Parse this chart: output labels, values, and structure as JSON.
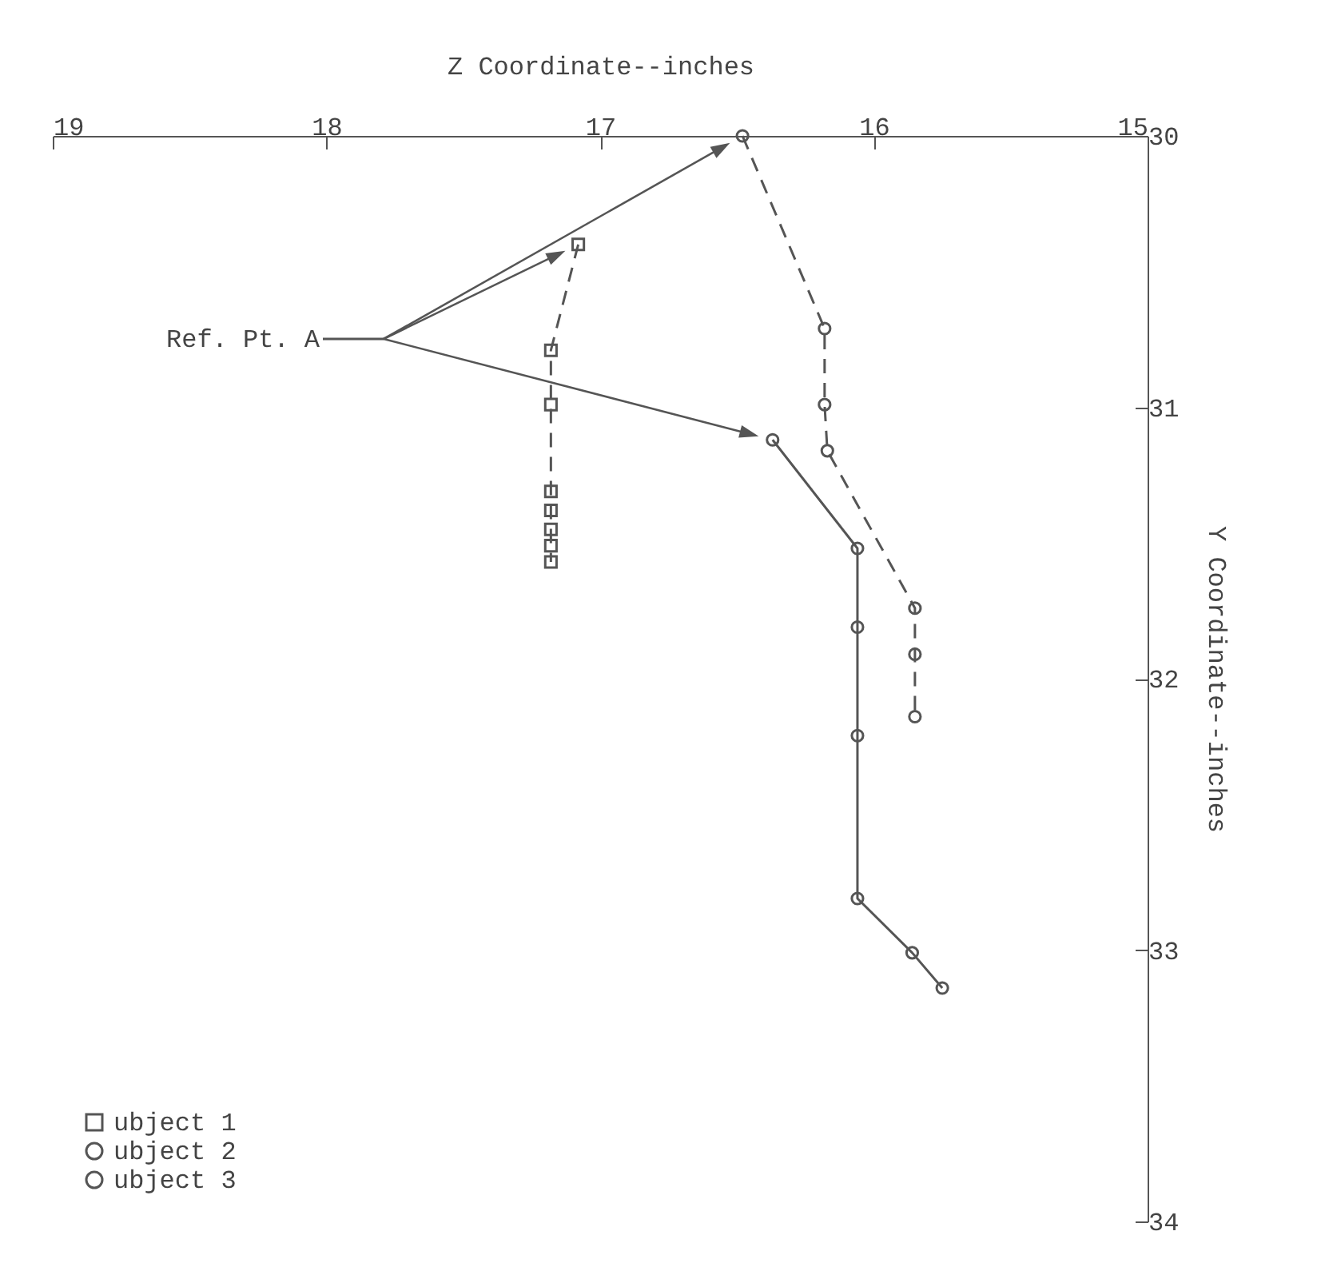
{
  "chart_data": {
    "type": "line",
    "xlabel": "Z Coordinate--inches",
    "ylabel": "Y Coordinate--inches",
    "xlim": [
      19,
      15
    ],
    "xticks": [
      19,
      18,
      17,
      16,
      15
    ],
    "ylim": [
      34,
      30
    ],
    "yticks": [
      30,
      31,
      32,
      33,
      34
    ],
    "grid": false,
    "legend": "bottom left",
    "annotations": [
      "Ref. Pt. A"
    ],
    "series": [
      {
        "name": "ubject 1",
        "color": "#555555",
        "marker": "square",
        "line_style": "dashed",
        "x": [
          17.08,
          17.18,
          17.18,
          17.18,
          17.18,
          17.18,
          17.18,
          17.18
        ],
        "values": [
          30.4,
          30.79,
          30.99,
          31.31,
          31.38,
          31.45,
          31.51,
          31.57
        ]
      },
      {
        "name": "ubject 2",
        "color": "#555555",
        "marker": "circle",
        "line_style": "dashed",
        "x": [
          16.48,
          16.18,
          16.18,
          16.17,
          15.85,
          15.85,
          15.85
        ],
        "values": [
          30.0,
          30.71,
          30.99,
          31.16,
          31.74,
          31.91,
          32.14
        ]
      },
      {
        "name": "ubject 3",
        "color": "#555555",
        "marker": "circle",
        "line_style": "solid",
        "x": [
          16.37,
          16.06,
          16.06,
          16.06,
          16.06,
          15.86,
          15.75
        ],
        "values": [
          31.12,
          31.52,
          31.81,
          32.21,
          32.81,
          33.01,
          33.14
        ]
      }
    ]
  }
}
